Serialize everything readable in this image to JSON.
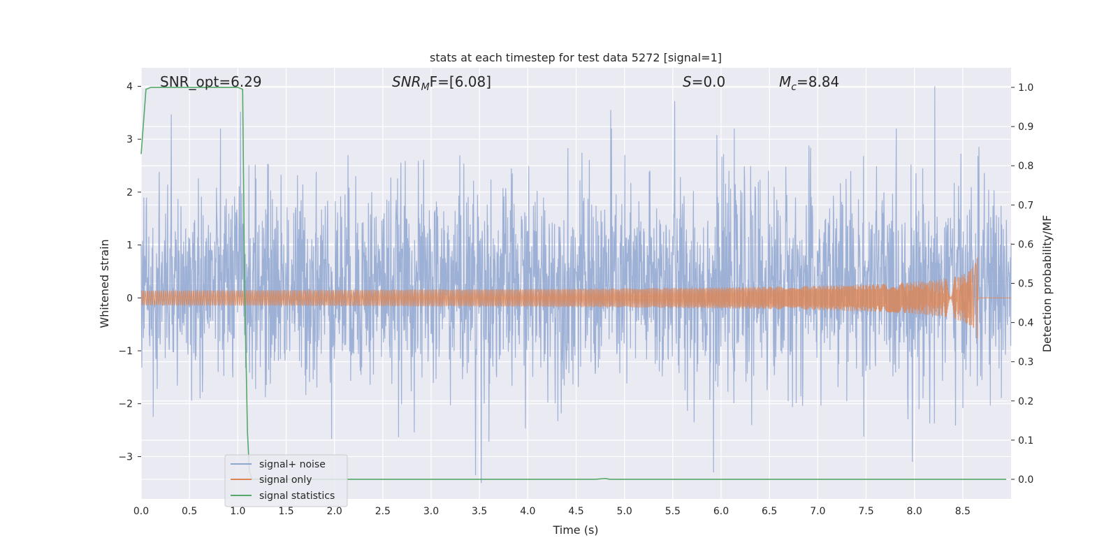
{
  "chart_data": {
    "type": "line",
    "title": "stats at each timestep for test data 5272 [signal=1]",
    "xlabel": "Time (s)",
    "ylabel_left": "Whitened strain",
    "ylabel_right": "Detection probability/MF",
    "xlim": [
      0.0,
      9.0
    ],
    "ylim_left": [
      -3.8,
      4.35
    ],
    "ylim_right": [
      -0.05,
      1.05
    ],
    "x_ticks": [
      "0.0",
      "0.5",
      "1.0",
      "1.5",
      "2.0",
      "2.5",
      "3.0",
      "3.5",
      "4.0",
      "4.5",
      "5.0",
      "5.5",
      "6.0",
      "6.5",
      "7.0",
      "7.5",
      "8.0",
      "8.5"
    ],
    "y_left_ticks": [
      "4",
      "3",
      "2",
      "1",
      "0",
      "−1",
      "−2",
      "−3"
    ],
    "y_right_ticks": [
      "1.0",
      "0.9",
      "0.8",
      "0.7",
      "0.6",
      "0.5",
      "0.4",
      "0.3",
      "0.2",
      "0.1",
      "0.0"
    ],
    "grid": true,
    "legend_placement": "lower-left",
    "annotations": {
      "snr_opt": "SNR_opt=6.29",
      "snr_mf_main": "SNR",
      "snr_mf_sub": "M",
      "snr_mf_rest": "F=[6.08]",
      "s_main": "S",
      "s_rest": "=0.0",
      "mc_main": "M",
      "mc_sub": "c",
      "mc_rest": "=8.84"
    },
    "series": [
      {
        "name": "signal+ noise",
        "color": "#8fa6d0",
        "axis": "left",
        "description_values": {
          "x_range": [
            0.0,
            9.0
          ],
          "typical_band": [
            -1.25,
            1.75
          ],
          "peaks_positive": [
            [
              0.31,
              3.47
            ],
            [
              1.03,
              3.52
            ],
            [
              3.48,
              1.95
            ],
            [
              4.86,
              3.55
            ],
            [
              5.52,
              3.72
            ],
            [
              8.21,
              4.0
            ]
          ],
          "peaks_negative": [
            [
              3.52,
              -3.5
            ],
            [
              5.92,
              -3.3
            ],
            [
              7.98,
              -3.1
            ],
            [
              3.46,
              -3.35
            ]
          ]
        }
      },
      {
        "name": "signal only",
        "color": "#dd8452",
        "axis": "left",
        "chirp": {
          "start": 0.0,
          "onset_visible": 4.5,
          "end": 8.66,
          "peak_amplitude": 0.9
        }
      },
      {
        "name": "signal statistics",
        "color": "#55a868",
        "axis": "right",
        "x": [
          0.0,
          0.05,
          0.1,
          0.2,
          0.5,
          0.8,
          1.0,
          1.05,
          1.07,
          1.1,
          1.12,
          1.15,
          1.2,
          4.7,
          4.8,
          4.85,
          4.9,
          8.95
        ],
        "y": [
          0.83,
          0.995,
          1.0,
          1.0,
          1.0,
          1.0,
          1.0,
          0.995,
          0.5,
          0.12,
          0.02,
          0.0,
          0.0,
          0.0,
          0.002,
          0.0,
          0.0,
          0.0
        ]
      }
    ]
  }
}
